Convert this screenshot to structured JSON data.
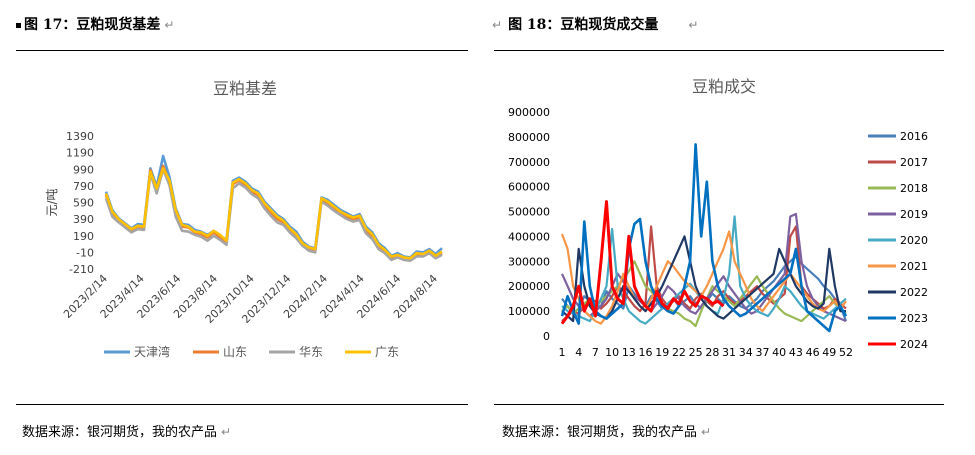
{
  "left": {
    "figure_title": "图 17：豆粕现货基差",
    "source": "数据来源：银河期货，我的农产品",
    "chart_data": {
      "type": "line",
      "title": "豆粕基差",
      "ylabel": "元/吨",
      "ylim": [
        -210,
        1390
      ],
      "yticks": [
        1390,
        1190,
        990,
        790,
        590,
        390,
        190,
        -10,
        -210
      ],
      "xticks": [
        "2023/2/14",
        "2023/4/14",
        "2023/6/14",
        "2023/8/14",
        "2023/10/14",
        "2023/12/14",
        "2024/2/14",
        "2024/4/14",
        "2024/6/14",
        "2024/8/14"
      ],
      "legend_position": "bottom",
      "series": [
        {
          "name": "天津湾",
          "color": "#5b9bd5",
          "values": [
            720,
            500,
            400,
            340,
            280,
            330,
            320,
            1000,
            780,
            1150,
            900,
            520,
            330,
            320,
            260,
            240,
            200,
            250,
            190,
            140,
            850,
            890,
            840,
            760,
            720,
            600,
            520,
            440,
            390,
            300,
            240,
            120,
            60,
            40,
            650,
            620,
            560,
            500,
            460,
            420,
            450,
            300,
            230,
            100,
            40,
            -50,
            -20,
            -60,
            -70,
            0,
            -10,
            30,
            -30,
            40
          ]
        },
        {
          "name": "山东",
          "color": "#ed7d31",
          "values": [
            680,
            450,
            380,
            320,
            260,
            300,
            290,
            980,
            740,
            1030,
            840,
            470,
            300,
            290,
            230,
            210,
            170,
            230,
            170,
            110,
            810,
            860,
            800,
            720,
            680,
            560,
            470,
            390,
            350,
            260,
            180,
            90,
            30,
            10,
            620,
            580,
            520,
            460,
            420,
            390,
            410,
            250,
            180,
            60,
            0,
            -80,
            -50,
            -80,
            -90,
            -40,
            -40,
            0,
            -60,
            -20
          ]
        },
        {
          "name": "华东",
          "color": "#a5a5a5",
          "values": [
            640,
            420,
            350,
            290,
            230,
            270,
            260,
            940,
            700,
            990,
            800,
            420,
            250,
            240,
            200,
            180,
            130,
            190,
            140,
            80,
            760,
            820,
            770,
            690,
            640,
            520,
            430,
            350,
            320,
            230,
            160,
            70,
            10,
            -10,
            600,
            550,
            490,
            440,
            390,
            360,
            380,
            220,
            150,
            30,
            -20,
            -100,
            -70,
            -100,
            -110,
            -60,
            -60,
            -20,
            -80,
            -40
          ]
        },
        {
          "name": "广东",
          "color": "#ffc000",
          "values": [
            700,
            480,
            390,
            330,
            270,
            310,
            300,
            960,
            760,
            1000,
            860,
            500,
            320,
            300,
            240,
            230,
            190,
            250,
            200,
            130,
            830,
            870,
            820,
            740,
            700,
            580,
            500,
            420,
            370,
            280,
            210,
            100,
            50,
            30,
            640,
            600,
            540,
            480,
            440,
            410,
            430,
            280,
            210,
            80,
            20,
            -60,
            -40,
            -70,
            -80,
            -20,
            -30,
            10,
            -50,
            0
          ]
        }
      ]
    }
  },
  "right": {
    "figure_title": "图 18：豆粕现货成交量",
    "source": "数据来源：银河期货，我的农产品",
    "chart_data": {
      "type": "line",
      "title": "豆粕成交",
      "ylim": [
        0,
        900000
      ],
      "yticks": [
        900000,
        800000,
        700000,
        600000,
        500000,
        400000,
        300000,
        200000,
        100000,
        0
      ],
      "xticks": [
        "1",
        "4",
        "7",
        "10",
        "13",
        "16",
        "19",
        "22",
        "25",
        "28",
        "31",
        "34",
        "37",
        "40",
        "43",
        "46",
        "49",
        "52"
      ],
      "legend_position": "right",
      "series": [
        {
          "name": "2016",
          "color": "#4a7ebb",
          "values": [
            150000,
            120000,
            90000,
            110000,
            160000,
            140000,
            100000,
            120000,
            180000,
            150000,
            130000,
            110000,
            200000,
            170000,
            140000,
            120000,
            160000,
            140000,
            110000,
            130000,
            150000,
            120000,
            140000,
            160000,
            130000,
            110000,
            140000,
            170000,
            150000,
            130000,
            160000,
            140000,
            120000,
            110000,
            130000,
            150000,
            180000,
            200000,
            220000,
            250000,
            280000,
            300000,
            320000,
            290000,
            270000,
            250000,
            230000,
            200000,
            180000,
            150000,
            120000,
            60000
          ]
        },
        {
          "name": "2017",
          "color": "#be4b48",
          "values": [
            60000,
            80000,
            100000,
            90000,
            120000,
            150000,
            140000,
            110000,
            130000,
            160000,
            200000,
            180000,
            150000,
            120000,
            100000,
            130000,
            440000,
            200000,
            150000,
            120000,
            140000,
            160000,
            130000,
            110000,
            150000,
            170000,
            140000,
            120000,
            160000,
            180000,
            150000,
            130000,
            140000,
            160000,
            180000,
            200000,
            170000,
            150000,
            130000,
            150000,
            170000,
            400000,
            440000,
            200000,
            170000,
            150000,
            130000,
            110000,
            120000,
            150000,
            130000,
            110000
          ]
        },
        {
          "name": "2018",
          "color": "#98b954",
          "values": [
            100000,
            120000,
            90000,
            110000,
            130000,
            150000,
            120000,
            140000,
            160000,
            180000,
            200000,
            230000,
            260000,
            300000,
            250000,
            200000,
            180000,
            150000,
            130000,
            110000,
            100000,
            90000,
            70000,
            60000,
            40000,
            100000,
            150000,
            200000,
            180000,
            160000,
            140000,
            120000,
            150000,
            180000,
            210000,
            240000,
            200000,
            170000,
            140000,
            110000,
            90000,
            80000,
            70000,
            60000,
            80000,
            100000,
            120000,
            140000,
            160000,
            130000,
            110000,
            90000
          ]
        },
        {
          "name": "2019",
          "color": "#7d60a0",
          "values": [
            250000,
            200000,
            150000,
            120000,
            100000,
            80000,
            100000,
            120000,
            150000,
            200000,
            250000,
            220000,
            180000,
            160000,
            140000,
            120000,
            100000,
            130000,
            160000,
            200000,
            180000,
            150000,
            120000,
            100000,
            90000,
            120000,
            150000,
            180000,
            210000,
            240000,
            200000,
            170000,
            140000,
            110000,
            90000,
            100000,
            130000,
            160000,
            190000,
            220000,
            250000,
            480000,
            490000,
            300000,
            200000,
            150000,
            120000,
            100000,
            90000,
            80000,
            70000,
            60000
          ]
        },
        {
          "name": "2020",
          "color": "#46aac5",
          "values": [
            120000,
            100000,
            90000,
            80000,
            70000,
            60000,
            100000,
            150000,
            200000,
            430000,
            200000,
            150000,
            100000,
            80000,
            60000,
            50000,
            70000,
            90000,
            110000,
            130000,
            150000,
            170000,
            190000,
            210000,
            180000,
            150000,
            120000,
            100000,
            90000,
            150000,
            250000,
            480000,
            200000,
            150000,
            120000,
            100000,
            90000,
            80000,
            110000,
            150000,
            200000,
            180000,
            150000,
            120000,
            100000,
            90000,
            80000,
            70000,
            90000,
            110000,
            130000,
            150000
          ]
        },
        {
          "name": "2021",
          "color": "#f79646",
          "values": [
            410000,
            350000,
            200000,
            150000,
            100000,
            80000,
            60000,
            50000,
            80000,
            120000,
            180000,
            250000,
            200000,
            150000,
            120000,
            100000,
            150000,
            200000,
            250000,
            300000,
            280000,
            250000,
            220000,
            200000,
            180000,
            160000,
            200000,
            250000,
            300000,
            350000,
            420000,
            300000,
            250000,
            200000,
            150000,
            120000,
            100000,
            130000,
            160000,
            190000,
            220000,
            250000,
            220000,
            190000,
            160000,
            130000,
            110000,
            100000,
            120000,
            140000,
            110000,
            140000
          ]
        },
        {
          "name": "2022",
          "color": "#1f3864",
          "values": [
            100000,
            80000,
            60000,
            350000,
            200000,
            120000,
            90000,
            80000,
            70000,
            100000,
            150000,
            200000,
            180000,
            150000,
            120000,
            100000,
            130000,
            160000,
            200000,
            250000,
            300000,
            350000,
            400000,
            300000,
            200000,
            150000,
            120000,
            100000,
            80000,
            70000,
            90000,
            110000,
            130000,
            150000,
            170000,
            190000,
            210000,
            230000,
            250000,
            350000,
            300000,
            250000,
            200000,
            170000,
            140000,
            120000,
            110000,
            130000,
            350000,
            200000,
            100000,
            100000
          ]
        },
        {
          "name": "2023",
          "color": "#0070c0",
          "values": [
            80000,
            160000,
            100000,
            50000,
            460000,
            200000,
            100000,
            80000,
            70000,
            90000,
            110000,
            130000,
            350000,
            450000,
            470000,
            300000,
            200000,
            150000,
            120000,
            100000,
            90000,
            120000,
            200000,
            300000,
            770000,
            400000,
            620000,
            300000,
            200000,
            150000,
            120000,
            100000,
            80000,
            90000,
            110000,
            130000,
            150000,
            170000,
            190000,
            210000,
            230000,
            250000,
            350000,
            200000,
            100000,
            80000,
            60000,
            40000,
            20000,
            100000,
            120000,
            80000
          ]
        },
        {
          "name": "2024",
          "color": "#ff0000",
          "values": [
            50000,
            80000,
            120000,
            200000,
            100000,
            150000,
            80000,
            300000,
            540000,
            200000,
            150000,
            130000,
            400000,
            200000,
            150000,
            120000,
            100000,
            180000,
            130000,
            110000,
            150000,
            130000,
            180000,
            140000,
            120000,
            160000,
            150000,
            130000,
            140000,
            120000
          ]
        }
      ]
    }
  }
}
